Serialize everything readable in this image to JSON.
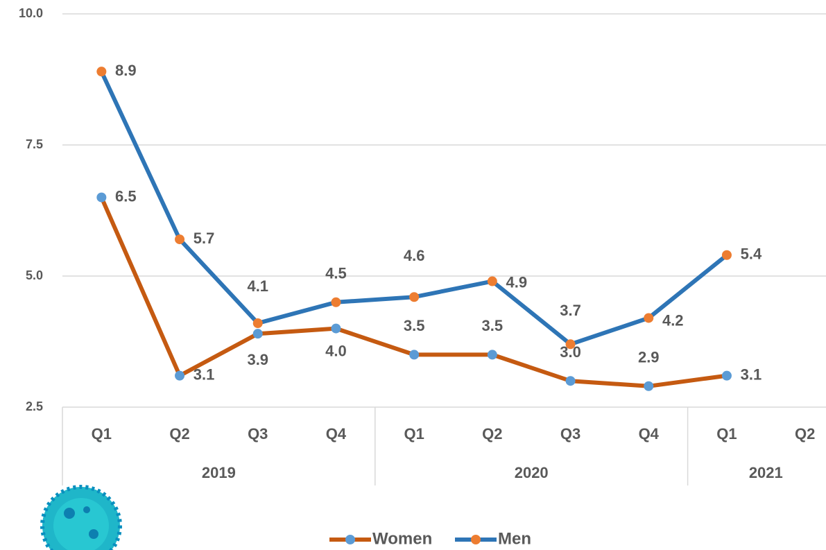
{
  "chart_data": {
    "type": "line",
    "categories": [
      "Q1",
      "Q2",
      "Q3",
      "Q4",
      "Q1",
      "Q2",
      "Q3",
      "Q4",
      "Q1",
      "Q2"
    ],
    "category_groups": [
      {
        "name": "2019",
        "count": 4
      },
      {
        "name": "2020",
        "count": 4
      },
      {
        "name": "2021",
        "count": 2
      }
    ],
    "series": [
      {
        "name": "Women",
        "color": "#c55a11",
        "marker_color": "#5b9bd5",
        "values": [
          6.5,
          3.1,
          3.9,
          4.0,
          3.5,
          3.5,
          3.0,
          2.9,
          3.1,
          null
        ],
        "value_labels": [
          "6.5",
          "3.1",
          "3.9",
          "4.0",
          "3.5",
          "3.5",
          "3.0",
          "2.9",
          "3.1",
          null
        ]
      },
      {
        "name": "Men",
        "color": "#2e75b6",
        "marker_color": "#ed7d31",
        "values": [
          8.9,
          5.7,
          4.1,
          4.5,
          4.6,
          4.9,
          3.7,
          4.2,
          5.4,
          null
        ],
        "value_labels": [
          "8.9",
          "5.7",
          "4.1",
          "4.5",
          "4.6",
          "4.9",
          "3.7",
          "4.2",
          "5.4",
          null
        ]
      }
    ],
    "ylim": [
      2.5,
      10
    ],
    "yticks": [
      2.5,
      {
        "value": 5,
        "label": "5.0"
      },
      7.5,
      {
        "value": 10,
        "label": "10.0"
      }
    ],
    "grid": true,
    "legend": "bottom"
  }
}
